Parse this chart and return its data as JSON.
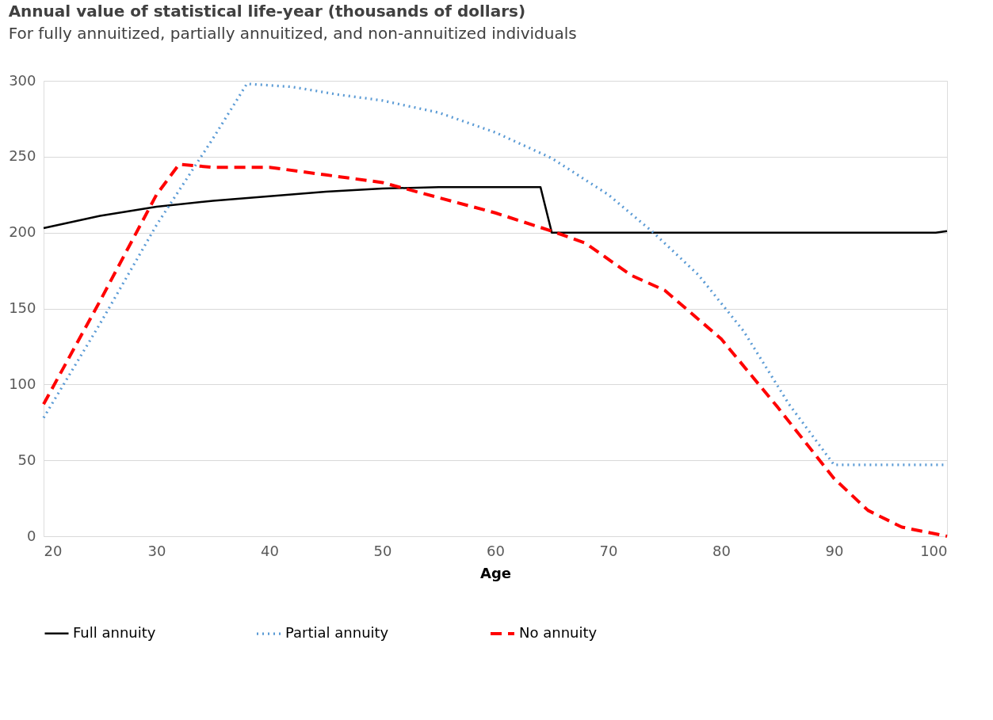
{
  "chart_data": {
    "type": "line",
    "title": "Annual value of statistical life-year (thousands of dollars)",
    "subtitle": "For fully annuitized, partially annuitized, and non-annuitized individuals",
    "xlabel": "Age",
    "xlim": [
      20,
      100
    ],
    "xticks": [
      20,
      30,
      40,
      50,
      60,
      70,
      80,
      90,
      100
    ],
    "ylim": [
      0,
      300
    ],
    "yticks": [
      0,
      50,
      100,
      150,
      200,
      250,
      300
    ],
    "grid": "y",
    "legend": "bottom",
    "marker": "none",
    "series": [
      {
        "name": "Full annuity",
        "color": "#000000",
        "line_style": "solid",
        "x": [
          20,
          25,
          30,
          35,
          40,
          45,
          50,
          55,
          64,
          65,
          99,
          100
        ],
        "values": [
          203,
          211,
          217,
          221,
          224,
          227,
          229,
          230,
          230,
          200,
          200,
          201
        ]
      },
      {
        "name": "Partial annuity",
        "color": "#5b9bd5",
        "line_style": "dotted",
        "x": [
          20,
          25,
          30,
          35,
          38,
          42,
          46,
          50,
          55,
          60,
          65,
          70,
          74,
          78,
          82,
          86,
          90,
          100
        ],
        "values": [
          78,
          140,
          205,
          262,
          298,
          296,
          291,
          287,
          279,
          266,
          249,
          225,
          200,
          172,
          135,
          87,
          47,
          47
        ]
      },
      {
        "name": "No annuity",
        "color": "#ff0000",
        "line_style": "dashed",
        "x": [
          20,
          25,
          30,
          32,
          35,
          40,
          45,
          50,
          55,
          60,
          65,
          68,
          72,
          75,
          80,
          85,
          90,
          93,
          96,
          100
        ],
        "values": [
          87,
          155,
          225,
          245,
          243,
          243,
          238,
          233,
          223,
          213,
          201,
          193,
          172,
          162,
          130,
          85,
          38,
          17,
          6,
          0
        ]
      }
    ]
  }
}
